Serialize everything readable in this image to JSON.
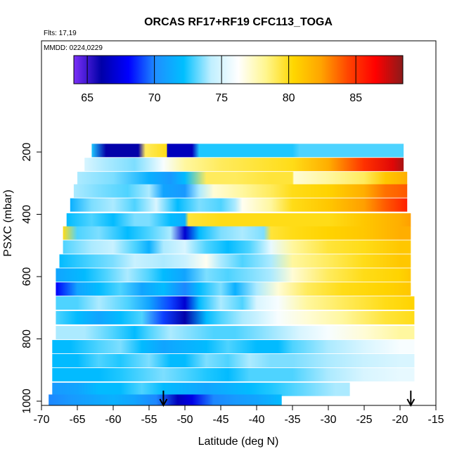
{
  "chart_data": {
    "type": "heatmap",
    "title": "ORCAS RF17+RF19 CFC113_TOGA",
    "flights_note": "Flts: 17,19",
    "dates_note": "MMDD: 0224,0229",
    "xlabel": "Latitude (deg N)",
    "ylabel": "PSXC (mbar)",
    "xlim": [
      -70,
      -15
    ],
    "ylim": [
      1000,
      150
    ],
    "x_ticks": [
      "-70",
      "-65",
      "-60",
      "-55",
      "-50",
      "-45",
      "-40",
      "-35",
      "-30",
      "-25",
      "-20",
      "-15"
    ],
    "y_ticks": [
      "200",
      "400",
      "600",
      "800",
      "1000"
    ],
    "colorbar": {
      "min": 64,
      "max": 88.5,
      "ticks": [
        "65",
        "70",
        "75",
        "80",
        "85"
      ],
      "colors": [
        "#7b2ff7",
        "#0000a8",
        "#0000ff",
        "#1e90ff",
        "#00bfff",
        "#bfefff",
        "#ffffff",
        "#fff68f",
        "#ffd700",
        "#ffa500",
        "#ff4500",
        "#ff0000",
        "#8b1a1a"
      ]
    },
    "arrows": [
      -53,
      -18.5
    ],
    "rows": [
      {
        "p": 195,
        "x0": -63,
        "x1": -19.5,
        "stops": [
          [
            -63,
            72.5
          ],
          [
            -61,
            66
          ],
          [
            -56.5,
            66
          ],
          [
            -55.5,
            79
          ],
          [
            -52.5,
            80
          ],
          [
            -52.5,
            66.5
          ],
          [
            -49,
            66.5
          ],
          [
            -48,
            72.5
          ],
          [
            -35,
            72.5
          ],
          [
            -34,
            73
          ],
          [
            -19.5,
            73
          ]
        ]
      },
      {
        "p": 240,
        "x0": -64,
        "x1": -19.5,
        "stops": [
          [
            -64,
            75
          ],
          [
            -61,
            74
          ],
          [
            -57,
            73.5
          ],
          [
            -53,
            76
          ],
          [
            -50,
            78
          ],
          [
            -45,
            79
          ],
          [
            -40,
            79.5
          ],
          [
            -35,
            80
          ],
          [
            -30,
            82
          ],
          [
            -25,
            85
          ],
          [
            -21,
            87
          ],
          [
            -19.5,
            88
          ]
        ]
      },
      {
        "p": 285,
        "x0": -65,
        "x1": -19,
        "stops": [
          [
            -65,
            74
          ],
          [
            -60,
            73.5
          ],
          [
            -55,
            71.5
          ],
          [
            -52,
            70.5
          ],
          [
            -50,
            72
          ],
          [
            -47,
            79
          ],
          [
            -43,
            79
          ],
          [
            -38,
            79.5
          ],
          [
            -35,
            79.5
          ],
          [
            -34.8,
            77
          ],
          [
            -30,
            78
          ],
          [
            -25,
            79
          ],
          [
            -22,
            81
          ],
          [
            -19,
            82
          ]
        ]
      },
      {
        "p": 325,
        "x0": -65.5,
        "x1": -19,
        "stops": [
          [
            -65.5,
            74
          ],
          [
            -62,
            73.5
          ],
          [
            -58,
            73
          ],
          [
            -55,
            74
          ],
          [
            -53,
            71
          ],
          [
            -50,
            70.5
          ],
          [
            -48,
            74
          ],
          [
            -46,
            77
          ],
          [
            -42,
            78
          ],
          [
            -38,
            79
          ],
          [
            -35,
            80
          ],
          [
            -30,
            80.5
          ],
          [
            -25,
            82
          ],
          [
            -22,
            83.5
          ],
          [
            -19,
            84
          ]
        ]
      },
      {
        "p": 370,
        "x0": -66,
        "x1": -19,
        "stops": [
          [
            -66,
            71.5
          ],
          [
            -63,
            73.5
          ],
          [
            -60,
            74
          ],
          [
            -57,
            73
          ],
          [
            -54,
            75
          ],
          [
            -51,
            72
          ],
          [
            -48,
            73.5
          ],
          [
            -45,
            73
          ],
          [
            -43,
            74
          ],
          [
            -42,
            76.5
          ],
          [
            -38,
            78
          ],
          [
            -35,
            80
          ],
          [
            -30,
            81
          ],
          [
            -25,
            82.5
          ],
          [
            -22,
            84
          ],
          [
            -19,
            85.5
          ]
        ]
      },
      {
        "p": 418,
        "x0": -66.5,
        "x1": -18.5,
        "stops": [
          [
            -66.5,
            72
          ],
          [
            -63,
            73
          ],
          [
            -60,
            72
          ],
          [
            -57,
            73.5
          ],
          [
            -55,
            73.5
          ],
          [
            -52,
            72
          ],
          [
            -50,
            71.5
          ],
          [
            -49.5,
            79.5
          ],
          [
            -45,
            80
          ],
          [
            -40,
            80
          ],
          [
            -35,
            80
          ],
          [
            -30,
            80
          ],
          [
            -25,
            81
          ],
          [
            -20,
            82
          ],
          [
            -18.5,
            82.5
          ]
        ]
      },
      {
        "p": 460,
        "x0": -67,
        "x1": -18.5,
        "stops": [
          [
            -67,
            80
          ],
          [
            -65,
            73
          ],
          [
            -62,
            73.5
          ],
          [
            -58,
            72
          ],
          [
            -55,
            73
          ],
          [
            -52,
            74
          ],
          [
            -50,
            67
          ],
          [
            -48,
            72
          ],
          [
            -45,
            73.5
          ],
          [
            -42,
            74
          ],
          [
            -39,
            73.5
          ],
          [
            -38,
            79.5
          ],
          [
            -35,
            80
          ],
          [
            -30,
            80.5
          ],
          [
            -25,
            81
          ],
          [
            -20,
            82
          ],
          [
            -18.5,
            82
          ]
        ]
      },
      {
        "p": 505,
        "x0": -67,
        "x1": -18.5,
        "stops": [
          [
            -67,
            73
          ],
          [
            -63,
            74
          ],
          [
            -60,
            74.5
          ],
          [
            -57,
            73
          ],
          [
            -55,
            71.5
          ],
          [
            -53,
            74
          ],
          [
            -50,
            75
          ],
          [
            -47,
            73
          ],
          [
            -44,
            72
          ],
          [
            -41,
            73
          ],
          [
            -38,
            75.5
          ],
          [
            -35,
            78
          ],
          [
            -30,
            79.5
          ],
          [
            -25,
            80
          ],
          [
            -20,
            81
          ],
          [
            -18.5,
            81
          ]
        ]
      },
      {
        "p": 550,
        "x0": -67.5,
        "x1": -18.5,
        "stops": [
          [
            -67.5,
            72
          ],
          [
            -63,
            73
          ],
          [
            -60,
            73.5
          ],
          [
            -57,
            74.5
          ],
          [
            -53,
            74
          ],
          [
            -50,
            74.5
          ],
          [
            -47,
            76.5
          ],
          [
            -45,
            74
          ],
          [
            -42,
            73
          ],
          [
            -38,
            74
          ],
          [
            -35,
            78
          ],
          [
            -30,
            79
          ],
          [
            -25,
            80
          ],
          [
            -20,
            81
          ],
          [
            -18.5,
            81
          ]
        ]
      },
      {
        "p": 595,
        "x0": -68,
        "x1": -18.5,
        "stops": [
          [
            -68,
            71
          ],
          [
            -64,
            72
          ],
          [
            -61,
            73
          ],
          [
            -58,
            74
          ],
          [
            -55,
            73
          ],
          [
            -53,
            72
          ],
          [
            -50,
            71
          ],
          [
            -47,
            73.5
          ],
          [
            -44,
            73
          ],
          [
            -41,
            73.5
          ],
          [
            -38,
            74
          ],
          [
            -35,
            77
          ],
          [
            -30,
            79
          ],
          [
            -25,
            80
          ],
          [
            -20,
            80.5
          ],
          [
            -18.5,
            81
          ]
        ]
      },
      {
        "p": 640,
        "x0": -68,
        "x1": -18.5,
        "stops": [
          [
            -68,
            68
          ],
          [
            -65,
            71
          ],
          [
            -62,
            72
          ],
          [
            -59,
            73
          ],
          [
            -56,
            71
          ],
          [
            -53,
            72
          ],
          [
            -50,
            70
          ],
          [
            -48,
            72
          ],
          [
            -45,
            73.5
          ],
          [
            -43,
            71.5
          ],
          [
            -40,
            74
          ],
          [
            -37,
            77
          ],
          [
            -33,
            79
          ],
          [
            -28,
            80
          ],
          [
            -22,
            80.5
          ],
          [
            -18.5,
            81
          ]
        ]
      },
      {
        "p": 685,
        "x0": -68,
        "x1": -18,
        "stops": [
          [
            -68,
            73
          ],
          [
            -65,
            73
          ],
          [
            -62,
            74
          ],
          [
            -58,
            73
          ],
          [
            -55,
            71
          ],
          [
            -52,
            69
          ],
          [
            -50,
            67
          ],
          [
            -48,
            72
          ],
          [
            -45,
            74
          ],
          [
            -42,
            73
          ],
          [
            -40,
            75
          ],
          [
            -37,
            76
          ],
          [
            -33,
            78
          ],
          [
            -28,
            79
          ],
          [
            -22,
            80
          ],
          [
            -18,
            80.5
          ]
        ]
      },
      {
        "p": 732,
        "x0": -68,
        "x1": -18,
        "stops": [
          [
            -68,
            73
          ],
          [
            -65,
            72
          ],
          [
            -62,
            71
          ],
          [
            -59,
            72
          ],
          [
            -56,
            73
          ],
          [
            -53,
            69
          ],
          [
            -50,
            66
          ],
          [
            -47,
            72
          ],
          [
            -45,
            73
          ],
          [
            -42,
            74
          ],
          [
            -40,
            74.5
          ],
          [
            -37,
            76
          ],
          [
            -33,
            77
          ],
          [
            -28,
            78
          ],
          [
            -22,
            79.5
          ],
          [
            -18,
            80
          ]
        ]
      },
      {
        "p": 780,
        "x0": -68,
        "x1": -18,
        "stops": [
          [
            -68,
            74
          ],
          [
            -64,
            74
          ],
          [
            -60,
            73
          ],
          [
            -57,
            72
          ],
          [
            -55,
            73
          ],
          [
            -52,
            74
          ],
          [
            -49,
            73.5
          ],
          [
            -46,
            73
          ],
          [
            -43,
            73
          ],
          [
            -40,
            73.5
          ],
          [
            -37,
            74
          ],
          [
            -34,
            75
          ],
          [
            -30,
            76
          ],
          [
            -25,
            77
          ],
          [
            -20,
            78
          ],
          [
            -18,
            78
          ]
        ]
      },
      {
        "p": 825,
        "x0": -68.5,
        "x1": -18,
        "stops": [
          [
            -68.5,
            72
          ],
          [
            -66,
            72
          ],
          [
            -62,
            73
          ],
          [
            -59,
            73.5
          ],
          [
            -56,
            72
          ],
          [
            -53,
            71
          ],
          [
            -50,
            71.5
          ],
          [
            -47,
            72
          ],
          [
            -44,
            73
          ],
          [
            -40,
            72
          ],
          [
            -37,
            72
          ],
          [
            -35,
            73
          ],
          [
            -30,
            74
          ],
          [
            -25,
            75
          ],
          [
            -20,
            76
          ],
          [
            -18,
            76
          ]
        ]
      },
      {
        "p": 870,
        "x0": -68.5,
        "x1": -18,
        "stops": [
          [
            -68.5,
            72
          ],
          [
            -65,
            72
          ],
          [
            -62,
            73
          ],
          [
            -59,
            72.5
          ],
          [
            -55,
            73.5
          ],
          [
            -52,
            72
          ],
          [
            -50,
            72
          ],
          [
            -47,
            73.5
          ],
          [
            -44,
            73
          ],
          [
            -41,
            74
          ],
          [
            -38,
            73.5
          ],
          [
            -35,
            73.5
          ],
          [
            -30,
            74
          ],
          [
            -25,
            74.5
          ],
          [
            -20,
            75
          ],
          [
            -18,
            75
          ]
        ]
      },
      {
        "p": 915,
        "x0": -68.5,
        "x1": -18,
        "stops": [
          [
            -68.5,
            72
          ],
          [
            -65,
            72
          ],
          [
            -62,
            72
          ],
          [
            -59,
            72.5
          ],
          [
            -56,
            73
          ],
          [
            -53,
            73.5
          ],
          [
            -50,
            73
          ],
          [
            -47,
            72.5
          ],
          [
            -44,
            72
          ],
          [
            -41,
            73
          ],
          [
            -38,
            73
          ],
          [
            -35,
            73
          ],
          [
            -30,
            74
          ],
          [
            -25,
            75
          ],
          [
            -20,
            75.5
          ],
          [
            -18,
            75.5
          ]
        ]
      },
      {
        "p": 962,
        "x0": -68.5,
        "x1": -27,
        "stops": [
          [
            -68.5,
            70.5
          ],
          [
            -65,
            71
          ],
          [
            -62,
            72
          ],
          [
            -59,
            72
          ],
          [
            -56,
            73
          ],
          [
            -53,
            72
          ],
          [
            -50,
            71.5
          ],
          [
            -47,
            71
          ],
          [
            -44,
            71.5
          ],
          [
            -41,
            72
          ],
          [
            -38,
            72.5
          ],
          [
            -35,
            73
          ],
          [
            -32,
            73.5
          ],
          [
            -29,
            74
          ],
          [
            -27,
            74
          ]
        ]
      },
      {
        "p": 1000,
        "x0": -69,
        "x1": -36.5,
        "stops": [
          [
            -69,
            70
          ],
          [
            -66,
            70.5
          ],
          [
            -63,
            71
          ],
          [
            -60,
            71.5
          ],
          [
            -57,
            71
          ],
          [
            -54,
            70
          ],
          [
            -51,
            66.5
          ],
          [
            -49,
            67.5
          ],
          [
            -46,
            70
          ],
          [
            -43,
            70.5
          ],
          [
            -40,
            71
          ],
          [
            -38,
            71.5
          ],
          [
            -36.5,
            72
          ]
        ]
      }
    ]
  }
}
